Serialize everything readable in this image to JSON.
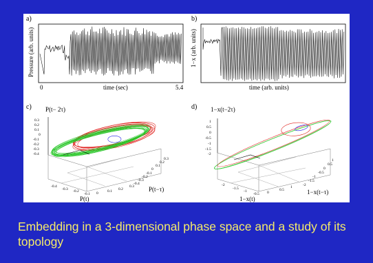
{
  "caption": "Embedding in a 3-dimensional phase space and a study of its topology",
  "colors": {
    "slide_bg": "#1f27c4",
    "caption": "#f4ea6a",
    "red": "#e0201c",
    "green": "#27c627",
    "blue": "#1a1ae6"
  },
  "chart_data": [
    {
      "panel": "a)",
      "type": "line",
      "ylabel": "Pressure (arb. units)",
      "xlabel": "time (sec)",
      "x_ticks": [
        "0",
        "5.4"
      ],
      "xlim": [
        0,
        5.4
      ],
      "series": [
        {
          "values": []
        }
      ]
    },
    {
      "panel": "b)",
      "type": "line",
      "ylabel": "1−x (arb. units)",
      "xlabel": "time (arb. units)",
      "series": [
        {
          "values": []
        }
      ]
    },
    {
      "panel": "c)",
      "type": "line",
      "zlabel": "P(t− 2τ)",
      "xlabel": "P(t)",
      "ylabel": "P(t−τ)",
      "z_ticks": [
        "0.3",
        "0.2",
        "0.1",
        "0",
        "-0.1",
        "-0.2",
        "-0.3",
        "-0.4"
      ],
      "x_ticks": [
        "-0.4",
        "-0.3",
        "-0.2",
        "-0.1",
        "0",
        "0.1",
        "0.2",
        "0.3"
      ],
      "y_ticks": [
        "-0.4",
        "-0.3",
        "-0.2",
        "-0.1",
        "0",
        "0.1",
        "0.2",
        "0.3"
      ],
      "series": [
        {
          "color": "red"
        },
        {
          "color": "green"
        },
        {
          "color": "blue"
        }
      ]
    },
    {
      "panel": "d)",
      "type": "line",
      "zlabel": "1−x(t−2τ)",
      "xlabel": "1−x(t)",
      "ylabel": "1−x(t−τ)",
      "z_ticks": [
        "1",
        "0.5",
        "0",
        "-0.5",
        "-1",
        "-1.5",
        "-2"
      ],
      "x_ticks": [
        "-2",
        "-1.5",
        "-1",
        "-0.5",
        "0",
        "0.5",
        "1"
      ],
      "y_ticks": [
        "-2",
        "-1.5",
        "-1",
        "-0.5",
        "0",
        "0.5",
        "1"
      ],
      "series": [
        {
          "color": "red"
        },
        {
          "color": "green"
        },
        {
          "color": "blue"
        }
      ]
    }
  ]
}
